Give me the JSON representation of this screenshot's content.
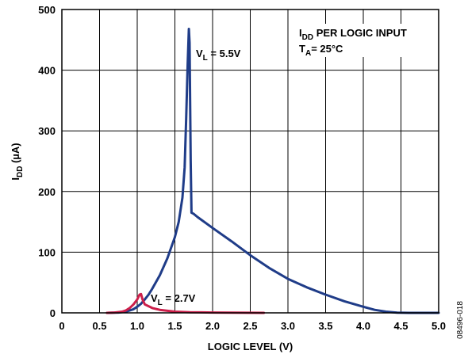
{
  "chart_data": {
    "type": "line",
    "xlabel": "LOGIC LEVEL (V)",
    "ylabel": {
      "main": "I",
      "sub": "DD",
      "unit": " (µA)"
    },
    "xlim": [
      0,
      5
    ],
    "ylim": [
      0,
      500
    ],
    "x_ticks": [
      "0",
      "0.5",
      "1.0",
      "1.5",
      "2.0",
      "2.5",
      "3.0",
      "3.5",
      "4.0",
      "4.5",
      "5.0"
    ],
    "y_ticks": [
      "0",
      "100",
      "200",
      "300",
      "400",
      "500"
    ],
    "grid": true,
    "series": [
      {
        "name": "VL = 5.5V",
        "color": "#1f3c88",
        "points": [
          [
            0.6,
            0
          ],
          [
            0.75,
            0.5
          ],
          [
            0.85,
            2
          ],
          [
            0.95,
            6
          ],
          [
            1.0,
            10
          ],
          [
            1.05,
            15
          ],
          [
            1.1,
            22
          ],
          [
            1.15,
            30
          ],
          [
            1.2,
            40
          ],
          [
            1.3,
            62
          ],
          [
            1.4,
            90
          ],
          [
            1.5,
            125
          ],
          [
            1.55,
            150
          ],
          [
            1.6,
            190
          ],
          [
            1.63,
            240
          ],
          [
            1.65,
            320
          ],
          [
            1.67,
            410
          ],
          [
            1.685,
            468
          ],
          [
            1.695,
            445
          ],
          [
            1.71,
            250
          ],
          [
            1.72,
            165
          ],
          [
            1.75,
            163
          ],
          [
            1.8,
            158
          ],
          [
            2.0,
            140
          ],
          [
            2.25,
            118
          ],
          [
            2.5,
            95
          ],
          [
            2.75,
            74
          ],
          [
            3.0,
            56
          ],
          [
            3.25,
            42
          ],
          [
            3.5,
            30
          ],
          [
            3.75,
            19
          ],
          [
            4.0,
            10
          ],
          [
            4.15,
            5
          ],
          [
            4.3,
            2
          ],
          [
            4.45,
            0.3
          ],
          [
            4.6,
            0
          ],
          [
            5.0,
            0
          ]
        ]
      },
      {
        "name": "VL = 2.7V",
        "color": "#cc1f4a",
        "points": [
          [
            0.6,
            0
          ],
          [
            0.7,
            0.5
          ],
          [
            0.8,
            2
          ],
          [
            0.85,
            4
          ],
          [
            0.9,
            8
          ],
          [
            0.95,
            14
          ],
          [
            1.0,
            22
          ],
          [
            1.03,
            30
          ],
          [
            1.05,
            31
          ],
          [
            1.07,
            22
          ],
          [
            1.1,
            14
          ],
          [
            1.2,
            8
          ],
          [
            1.3,
            5
          ],
          [
            1.5,
            2
          ],
          [
            1.7,
            1
          ],
          [
            2.0,
            0.5
          ],
          [
            2.68,
            0
          ]
        ]
      }
    ],
    "annotations": {
      "vl55": {
        "main": "V",
        "sub": "L",
        "rest": " = 5.5V"
      },
      "vl27": {
        "main": "V",
        "sub": "L",
        "rest": " = 2.7V"
      },
      "idd_line": {
        "main": "I",
        "sub": "DD",
        "rest": " PER LOGIC INPUT"
      },
      "ta_line": {
        "main": "T",
        "sub": "A",
        "rest": "= 25°C"
      }
    },
    "figure_id": "08496-018"
  }
}
